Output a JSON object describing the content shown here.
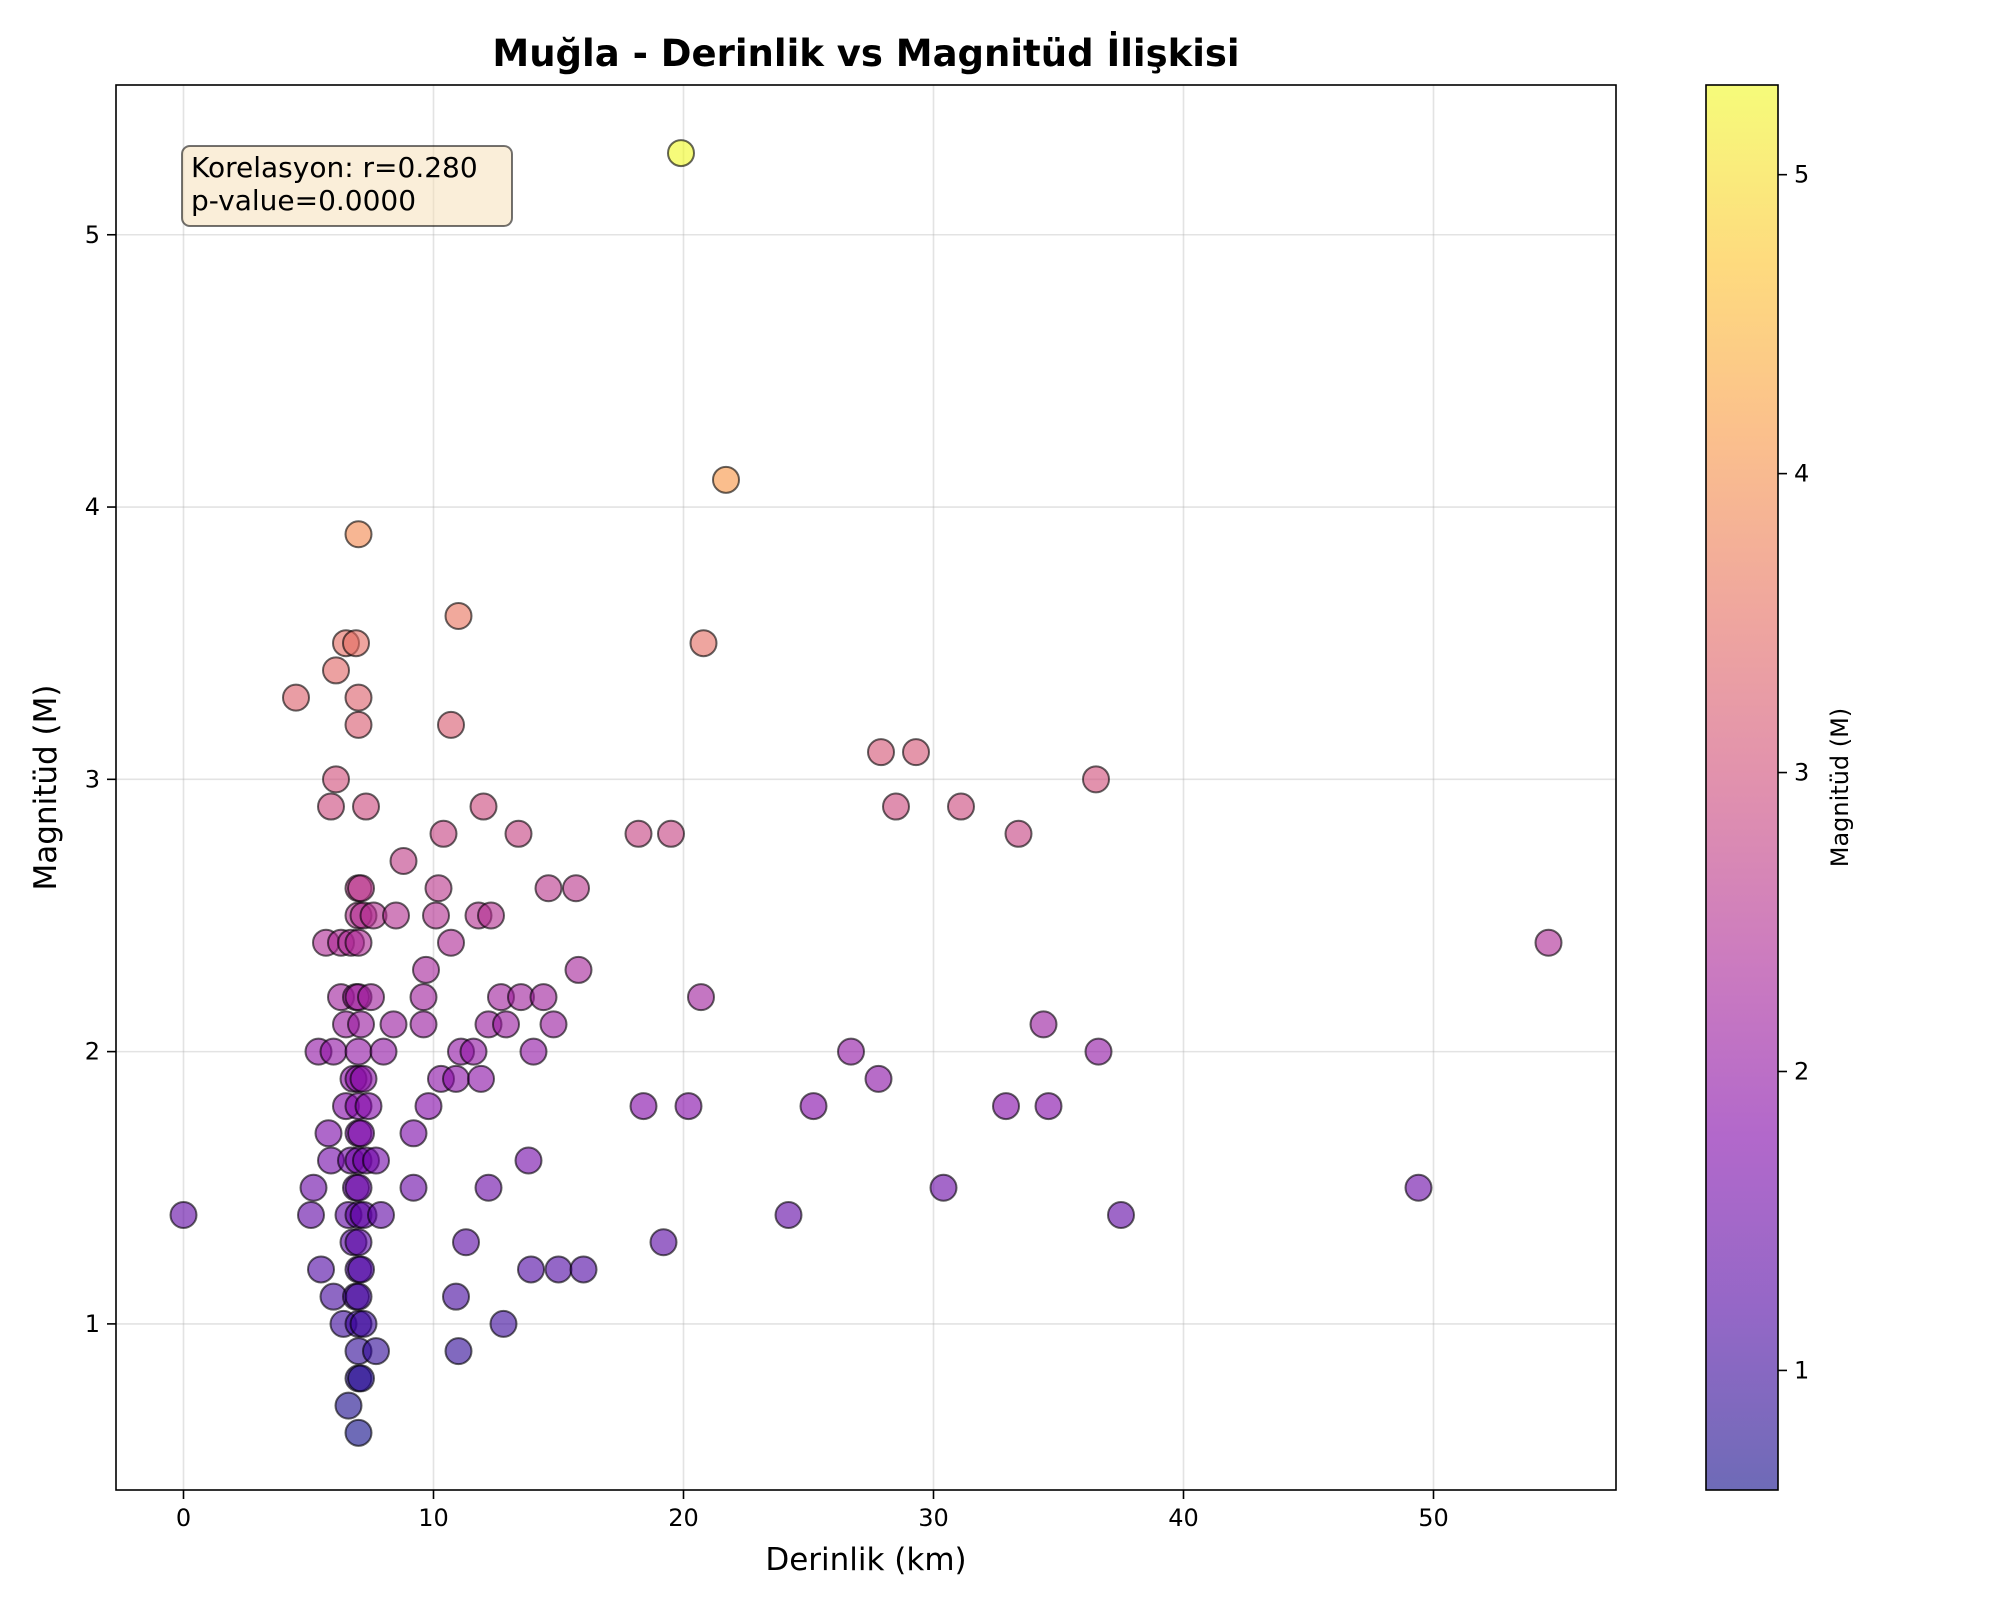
{
  "chart_data": {
    "type": "scatter",
    "title": "Muğla - Derinlik vs Magnitüd İlişkisi",
    "xlabel": "Derinlik (km)",
    "ylabel": "Magnitüd (M)",
    "xlim": [
      -2.7,
      57.3
    ],
    "ylim": [
      0.39,
      5.55
    ],
    "xticks": [
      0,
      10,
      20,
      30,
      40,
      50
    ],
    "yticks": [
      1,
      2,
      3,
      4,
      5
    ],
    "grid": true,
    "colormap": "plasma",
    "colorbar": {
      "label": "Magnitüd (M)",
      "range": [
        0.6,
        5.3
      ],
      "ticks": [
        1,
        2,
        3,
        4,
        5
      ]
    },
    "annotation": {
      "lines": [
        "Korelasyon: r=0.280",
        "p-value=0.0000"
      ],
      "placement": "top-left"
    },
    "points": [
      {
        "x": 0.0,
        "y": 1.4
      },
      {
        "x": 4.5,
        "y": 3.3
      },
      {
        "x": 5.1,
        "y": 1.4
      },
      {
        "x": 5.2,
        "y": 1.5
      },
      {
        "x": 5.4,
        "y": 2.0
      },
      {
        "x": 5.5,
        "y": 1.2
      },
      {
        "x": 5.7,
        "y": 2.4
      },
      {
        "x": 5.8,
        "y": 1.7
      },
      {
        "x": 5.9,
        "y": 2.9
      },
      {
        "x": 5.9,
        "y": 1.6
      },
      {
        "x": 6.0,
        "y": 1.1
      },
      {
        "x": 6.0,
        "y": 2.0
      },
      {
        "x": 6.1,
        "y": 3.0
      },
      {
        "x": 6.1,
        "y": 3.4
      },
      {
        "x": 6.3,
        "y": 2.4
      },
      {
        "x": 6.3,
        "y": 2.2
      },
      {
        "x": 6.4,
        "y": 1.0
      },
      {
        "x": 6.5,
        "y": 3.5
      },
      {
        "x": 6.5,
        "y": 2.1
      },
      {
        "x": 6.5,
        "y": 1.8
      },
      {
        "x": 6.6,
        "y": 1.4
      },
      {
        "x": 6.6,
        "y": 0.7
      },
      {
        "x": 6.7,
        "y": 1.6
      },
      {
        "x": 6.7,
        "y": 2.4
      },
      {
        "x": 6.8,
        "y": 1.9
      },
      {
        "x": 6.8,
        "y": 1.3
      },
      {
        "x": 6.9,
        "y": 3.5
      },
      {
        "x": 6.9,
        "y": 2.2
      },
      {
        "x": 6.9,
        "y": 1.5
      },
      {
        "x": 6.9,
        "y": 1.1
      },
      {
        "x": 7.0,
        "y": 3.9
      },
      {
        "x": 7.0,
        "y": 3.3
      },
      {
        "x": 7.0,
        "y": 3.2
      },
      {
        "x": 7.0,
        "y": 2.6
      },
      {
        "x": 7.0,
        "y": 2.5
      },
      {
        "x": 7.0,
        "y": 2.4
      },
      {
        "x": 7.0,
        "y": 2.2
      },
      {
        "x": 7.0,
        "y": 2.0
      },
      {
        "x": 7.0,
        "y": 1.9
      },
      {
        "x": 7.0,
        "y": 1.8
      },
      {
        "x": 7.0,
        "y": 1.7
      },
      {
        "x": 7.0,
        "y": 1.6
      },
      {
        "x": 7.0,
        "y": 1.5
      },
      {
        "x": 7.0,
        "y": 1.4
      },
      {
        "x": 7.0,
        "y": 1.3
      },
      {
        "x": 7.0,
        "y": 1.2
      },
      {
        "x": 7.0,
        "y": 1.1
      },
      {
        "x": 7.0,
        "y": 1.0
      },
      {
        "x": 7.0,
        "y": 0.9
      },
      {
        "x": 7.0,
        "y": 0.8
      },
      {
        "x": 7.0,
        "y": 0.6
      },
      {
        "x": 7.1,
        "y": 2.6
      },
      {
        "x": 7.1,
        "y": 2.1
      },
      {
        "x": 7.1,
        "y": 1.7
      },
      {
        "x": 7.1,
        "y": 1.2
      },
      {
        "x": 7.1,
        "y": 0.8
      },
      {
        "x": 7.2,
        "y": 2.5
      },
      {
        "x": 7.2,
        "y": 1.9
      },
      {
        "x": 7.2,
        "y": 1.4
      },
      {
        "x": 7.2,
        "y": 1.0
      },
      {
        "x": 7.3,
        "y": 2.9
      },
      {
        "x": 7.3,
        "y": 1.6
      },
      {
        "x": 7.4,
        "y": 1.8
      },
      {
        "x": 7.5,
        "y": 2.2
      },
      {
        "x": 7.6,
        "y": 2.5
      },
      {
        "x": 7.7,
        "y": 1.6
      },
      {
        "x": 7.7,
        "y": 0.9
      },
      {
        "x": 7.9,
        "y": 1.4
      },
      {
        "x": 8.0,
        "y": 2.0
      },
      {
        "x": 8.4,
        "y": 2.1
      },
      {
        "x": 8.5,
        "y": 2.5
      },
      {
        "x": 8.8,
        "y": 2.7
      },
      {
        "x": 9.2,
        "y": 1.7
      },
      {
        "x": 9.2,
        "y": 1.5
      },
      {
        "x": 9.6,
        "y": 2.2
      },
      {
        "x": 9.6,
        "y": 2.1
      },
      {
        "x": 9.7,
        "y": 2.3
      },
      {
        "x": 9.8,
        "y": 1.8
      },
      {
        "x": 10.1,
        "y": 2.5
      },
      {
        "x": 10.2,
        "y": 2.6
      },
      {
        "x": 10.3,
        "y": 1.9
      },
      {
        "x": 10.4,
        "y": 2.8
      },
      {
        "x": 10.7,
        "y": 3.2
      },
      {
        "x": 10.7,
        "y": 2.4
      },
      {
        "x": 10.9,
        "y": 1.9
      },
      {
        "x": 10.9,
        "y": 1.1
      },
      {
        "x": 11.0,
        "y": 3.6
      },
      {
        "x": 11.0,
        "y": 0.9
      },
      {
        "x": 11.1,
        "y": 2.0
      },
      {
        "x": 11.3,
        "y": 1.3
      },
      {
        "x": 11.6,
        "y": 2.0
      },
      {
        "x": 11.8,
        "y": 2.5
      },
      {
        "x": 11.9,
        "y": 1.9
      },
      {
        "x": 12.0,
        "y": 2.9
      },
      {
        "x": 12.2,
        "y": 2.1
      },
      {
        "x": 12.2,
        "y": 1.5
      },
      {
        "x": 12.3,
        "y": 2.5
      },
      {
        "x": 12.7,
        "y": 2.2
      },
      {
        "x": 12.8,
        "y": 1.0
      },
      {
        "x": 12.9,
        "y": 2.1
      },
      {
        "x": 13.4,
        "y": 2.8
      },
      {
        "x": 13.5,
        "y": 2.2
      },
      {
        "x": 13.8,
        "y": 1.6
      },
      {
        "x": 13.9,
        "y": 1.2
      },
      {
        "x": 14.0,
        "y": 2.0
      },
      {
        "x": 14.4,
        "y": 2.2
      },
      {
        "x": 14.6,
        "y": 2.6
      },
      {
        "x": 14.8,
        "y": 2.1
      },
      {
        "x": 15.0,
        "y": 1.2
      },
      {
        "x": 15.7,
        "y": 2.6
      },
      {
        "x": 15.8,
        "y": 2.3
      },
      {
        "x": 16.0,
        "y": 1.2
      },
      {
        "x": 18.2,
        "y": 2.8
      },
      {
        "x": 18.4,
        "y": 1.8
      },
      {
        "x": 19.2,
        "y": 1.3
      },
      {
        "x": 19.5,
        "y": 2.8
      },
      {
        "x": 19.9,
        "y": 5.3
      },
      {
        "x": 20.2,
        "y": 1.8
      },
      {
        "x": 20.7,
        "y": 2.2
      },
      {
        "x": 20.8,
        "y": 3.5
      },
      {
        "x": 21.7,
        "y": 4.1
      },
      {
        "x": 24.2,
        "y": 1.4
      },
      {
        "x": 25.2,
        "y": 1.8
      },
      {
        "x": 26.7,
        "y": 2.0
      },
      {
        "x": 27.8,
        "y": 1.9
      },
      {
        "x": 27.9,
        "y": 3.1
      },
      {
        "x": 28.5,
        "y": 2.9
      },
      {
        "x": 29.3,
        "y": 3.1
      },
      {
        "x": 30.4,
        "y": 1.5
      },
      {
        "x": 31.1,
        "y": 2.9
      },
      {
        "x": 32.9,
        "y": 1.8
      },
      {
        "x": 33.4,
        "y": 2.8
      },
      {
        "x": 34.4,
        "y": 2.1
      },
      {
        "x": 34.6,
        "y": 1.8
      },
      {
        "x": 36.5,
        "y": 3.0
      },
      {
        "x": 36.6,
        "y": 2.0
      },
      {
        "x": 37.5,
        "y": 1.4
      },
      {
        "x": 49.4,
        "y": 1.5
      },
      {
        "x": 54.6,
        "y": 2.4
      }
    ]
  }
}
